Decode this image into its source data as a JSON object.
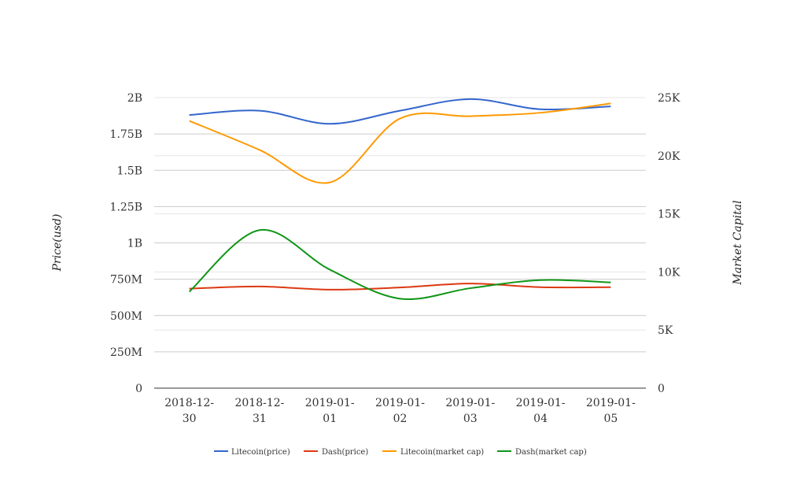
{
  "chart_data": {
    "type": "line",
    "categories": [
      "2018-12-30",
      "2018-12-31",
      "2019-01-01",
      "2019-01-02",
      "2019-01-03",
      "2019-01-04",
      "2019-01-05"
    ],
    "x_tick_labels": [
      [
        "2018-12-",
        "30"
      ],
      [
        "2018-12-",
        "31"
      ],
      [
        "2019-01-",
        "01"
      ],
      [
        "2019-01-",
        "02"
      ],
      [
        "2019-01-",
        "03"
      ],
      [
        "2019-01-",
        "04"
      ],
      [
        "2019-01-",
        "05"
      ]
    ],
    "ylabel_left": "Price(usd)",
    "ylabel_right": "Market Capital",
    "ylim_left": [
      0,
      2000000000
    ],
    "ylim_right": [
      0,
      25000
    ],
    "left_ticks": [
      {
        "value": 0,
        "label": "0"
      },
      {
        "value": 250000000,
        "label": "250M"
      },
      {
        "value": 500000000,
        "label": "500M"
      },
      {
        "value": 750000000,
        "label": "750M"
      },
      {
        "value": 1000000000,
        "label": "1B"
      },
      {
        "value": 1250000000,
        "label": "1.25B"
      },
      {
        "value": 1500000000,
        "label": "1.5B"
      },
      {
        "value": 1750000000,
        "label": "1.75B"
      },
      {
        "value": 2000000000,
        "label": "2B"
      }
    ],
    "right_ticks": [
      {
        "value": 0,
        "label": "0"
      },
      {
        "value": 5000,
        "label": "5K"
      },
      {
        "value": 10000,
        "label": "10K"
      },
      {
        "value": 15000,
        "label": "15K"
      },
      {
        "value": 20000,
        "label": "20K"
      },
      {
        "value": 25000,
        "label": "25K"
      }
    ],
    "grid": true,
    "legend_position": "bottom-center",
    "series": [
      {
        "name": "Litecoin(price)",
        "axis": "left",
        "color": "#3366cc",
        "values": [
          1880000000,
          1910000000,
          1820000000,
          1910000000,
          1990000000,
          1920000000,
          1940000000
        ]
      },
      {
        "name": "Dash(price)",
        "axis": "left",
        "color": "#dc3912",
        "values": [
          685000000,
          700000000,
          678000000,
          693000000,
          720000000,
          695000000,
          695000000
        ]
      },
      {
        "name": "Litecoin(market cap)",
        "axis": "right",
        "color": "#ff9900",
        "values": [
          23000,
          20500,
          17700,
          23200,
          23400,
          23700,
          24500
        ]
      },
      {
        "name": "Dash(market cap)",
        "axis": "right",
        "color": "#109618",
        "values": [
          8300,
          13600,
          10200,
          7700,
          8600,
          9300,
          9100
        ]
      }
    ]
  }
}
